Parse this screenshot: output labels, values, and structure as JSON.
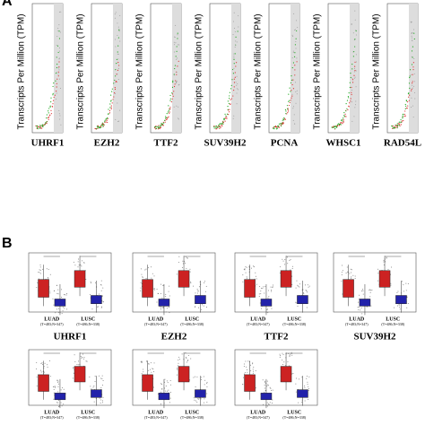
{
  "panel_a": {
    "label": "A",
    "y_label": "Transcripts Per Million (TPM)",
    "genes": [
      "UHRF1",
      "EZH2",
      "TTF2",
      "SUV39H2",
      "PCNA",
      "WHSC1",
      "RAD54L"
    ]
  },
  "panel_b": {
    "label": "B",
    "groups": [
      "LUAD",
      "LUSC"
    ],
    "group_counts": [
      "(T=483;N=347)",
      "(T=486;N=338)"
    ],
    "genes": [
      "UHRF1",
      "EZH2",
      "TTF2",
      "SUV39H2"
    ]
  }
}
